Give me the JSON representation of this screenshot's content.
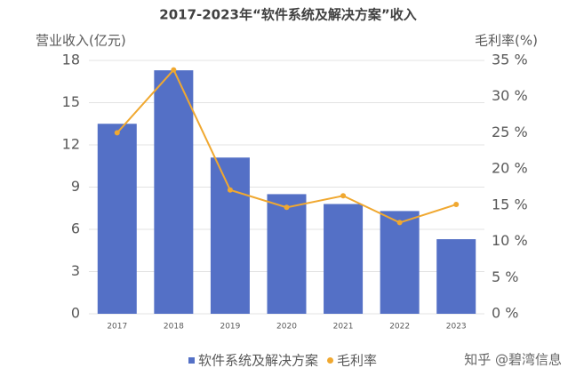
{
  "chart_data": {
    "type": "bar-line",
    "title": "2017-2023年“软件系统及解决方案”收入",
    "y_label": "营业收入(亿元)",
    "y2_label": "毛利率(%)",
    "categories": [
      "2017",
      "2018",
      "2019",
      "2020",
      "2021",
      "2022",
      "2023"
    ],
    "series": [
      {
        "name": "软件系统及解决方案",
        "type": "bar",
        "color": "#5470c6",
        "values": [
          13.5,
          17.3,
          11.1,
          8.5,
          7.8,
          7.3,
          5.3
        ]
      },
      {
        "name": "毛利率",
        "type": "line",
        "axis": "y2",
        "color": "#f0a830",
        "values": [
          25.0,
          33.7,
          17.1,
          14.7,
          16.3,
          12.6,
          15.1
        ]
      }
    ],
    "ylim": [
      0,
      18
    ],
    "yticks": [
      0,
      3,
      6,
      9,
      12,
      15,
      18
    ],
    "y2lim": [
      0,
      35
    ],
    "y2ticks": [
      {
        "value": 0,
        "label": "0 %"
      },
      {
        "value": 5,
        "label": "5 %"
      },
      {
        "value": 10,
        "label": "10 %"
      },
      {
        "value": 15,
        "label": "15 %"
      },
      {
        "value": 20,
        "label": "20 %"
      },
      {
        "value": 25,
        "label": "25 %"
      },
      {
        "value": 30,
        "label": "30 %"
      },
      {
        "value": 35,
        "label": "35 %"
      }
    ],
    "grid": true,
    "watermark": "知乎 @碧湾信息"
  }
}
